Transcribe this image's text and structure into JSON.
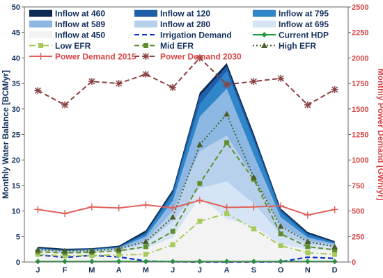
{
  "chart_data": {
    "type": "area",
    "categories": [
      "J",
      "F",
      "M",
      "A",
      "M",
      "J",
      "J",
      "A",
      "S",
      "O",
      "N",
      "D"
    ],
    "xlabel": "",
    "ylabel_left": "Monthly Water Balance [BCM/yr]",
    "ylabel_right": "Monthly Power Demand [GWh/yr]",
    "ylim_left": [
      0,
      50
    ],
    "yticks_left": [
      "0",
      "5",
      "10",
      "15",
      "20",
      "25",
      "30",
      "35",
      "40",
      "45",
      "50"
    ],
    "ylim_right": [
      0,
      2500
    ],
    "yticks_right": [
      "0",
      "250",
      "500",
      "750",
      "1000",
      "1250",
      "1500",
      "1750",
      "2000",
      "2250",
      "2500"
    ],
    "grid": false,
    "legend_position": "top",
    "area_series": [
      {
        "name": "Inflow at 460",
        "color": "#0d2a52",
        "values": [
          3.0,
          2.6,
          2.7,
          3.2,
          6.2,
          14.2,
          33.2,
          39.0,
          25.2,
          10.5,
          5.9,
          4.1
        ]
      },
      {
        "name": "Inflow at 120",
        "color": "#1f5ea8",
        "values": [
          2.8,
          2.4,
          2.6,
          3.0,
          5.8,
          13.8,
          32.6,
          38.4,
          24.6,
          10.2,
          5.6,
          3.9
        ]
      },
      {
        "name": "Inflow at 795",
        "color": "#2f86c8",
        "values": [
          2.7,
          2.3,
          2.5,
          2.9,
          5.5,
          13.3,
          31.0,
          37.5,
          23.8,
          9.8,
          5.3,
          3.8
        ]
      },
      {
        "name": "Inflow at 589",
        "color": "#8db8e4",
        "values": [
          2.6,
          2.2,
          2.4,
          2.8,
          5.0,
          12.0,
          28.5,
          34.0,
          21.0,
          8.8,
          4.8,
          3.6
        ]
      },
      {
        "name": "Inflow at 280",
        "color": "#b7d0ec",
        "values": [
          2.5,
          2.1,
          2.3,
          2.6,
          4.3,
          10.0,
          21.8,
          24.8,
          16.5,
          7.2,
          4.2,
          3.3
        ]
      },
      {
        "name": "Inflow at 695",
        "color": "#d6e5f5",
        "values": [
          2.3,
          2.0,
          2.1,
          2.4,
          3.6,
          8.0,
          14.5,
          15.8,
          11.5,
          5.5,
          3.5,
          3.0
        ]
      },
      {
        "name": "Inflow at 450",
        "color": "#f3f3f3",
        "values": [
          2.0,
          1.6,
          1.8,
          2.0,
          2.6,
          4.8,
          12.7,
          8.5,
          7.0,
          3.5,
          2.5,
          2.2
        ]
      }
    ],
    "line_series": [
      {
        "name": "Irrigation Demand",
        "axis": "left",
        "color": "#1432c8",
        "style": "dash",
        "marker": "none",
        "values": [
          1.4,
          0.9,
          1.3,
          1.0,
          0.2,
          0.05,
          0.0,
          0.0,
          0.0,
          0.05,
          0.95,
          0.7
        ]
      },
      {
        "name": "Current HDP",
        "axis": "left",
        "color": "#1e9a3c",
        "style": "solid",
        "marker": "diamond",
        "values": [
          0.1,
          0.1,
          0.1,
          0.1,
          0.1,
          0.1,
          0.1,
          0.1,
          0.1,
          0.1,
          0.1,
          0.1
        ]
      },
      {
        "name": "Low EFR",
        "axis": "left",
        "color": "#a6c95a",
        "style": "dashdot",
        "marker": "square",
        "values": [
          1.5,
          1.2,
          1.3,
          1.4,
          1.5,
          3.4,
          8.0,
          9.5,
          6.5,
          3.2,
          1.8,
          1.5
        ]
      },
      {
        "name": "Mid EFR",
        "axis": "left",
        "color": "#5e8f2e",
        "style": "dash",
        "marker": "square",
        "values": [
          2.0,
          1.8,
          1.9,
          2.2,
          3.0,
          6.0,
          15.4,
          23.4,
          16.2,
          5.5,
          3.0,
          2.4
        ]
      },
      {
        "name": "High EFR",
        "axis": "left",
        "color": "#4b5f2a",
        "style": "dot",
        "marker": "triangle",
        "values": [
          2.4,
          2.2,
          2.2,
          2.6,
          4.0,
          8.8,
          23.0,
          29.0,
          16.6,
          7.0,
          4.0,
          3.0
        ]
      },
      {
        "name": "Power Demand 2015",
        "axis": "right",
        "color": "#e0605a",
        "style": "solid",
        "marker": "plus",
        "values": [
          515,
          475,
          540,
          530,
          560,
          530,
          605,
          535,
          540,
          550,
          460,
          515
        ]
      },
      {
        "name": "Power Demand 2030",
        "axis": "right",
        "color": "#8a4040",
        "style": "dash",
        "marker": "star",
        "values": [
          1680,
          1540,
          1770,
          1750,
          1840,
          1710,
          2000,
          1740,
          1770,
          1800,
          1540,
          1690
        ]
      }
    ],
    "colors": {
      "left_axis": "#13305e",
      "right_axis": "#d64545"
    }
  }
}
